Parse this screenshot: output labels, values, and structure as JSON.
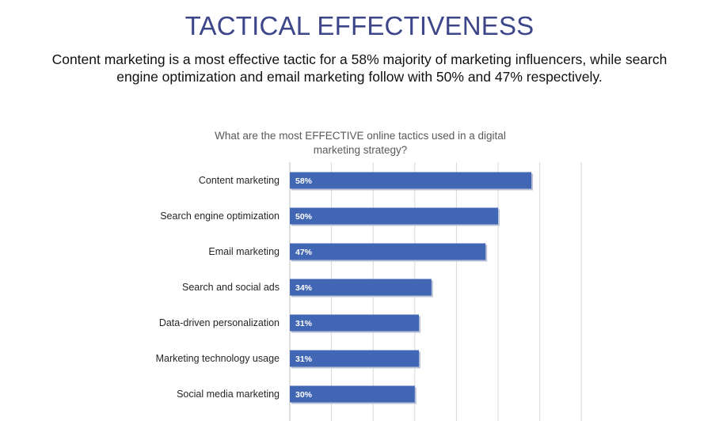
{
  "header": {
    "title": "TACTICAL EFFECTIVENESS",
    "subtitle": "Content marketing is a most effective tactic for a 58% majority of marketing influencers, while search engine optimization and email marketing follow with 50% and 47% respectively."
  },
  "chart_data": {
    "type": "bar",
    "orientation": "horizontal",
    "title": "What are the most EFFECTIVE online tactics used in a digital marketing strategy?",
    "categories": [
      "Content marketing",
      "Search engine optimization",
      "Email marketing",
      "Search and social ads",
      "Data-driven personalization",
      "Marketing technology usage",
      "Social media marketing"
    ],
    "values": [
      58,
      50,
      47,
      34,
      31,
      31,
      30
    ],
    "value_labels": [
      "58%",
      "50%",
      "47%",
      "34%",
      "31%",
      "31%",
      "30%"
    ],
    "xlim": [
      0,
      70
    ],
    "grid": true,
    "bar_color": "#4166b4"
  }
}
